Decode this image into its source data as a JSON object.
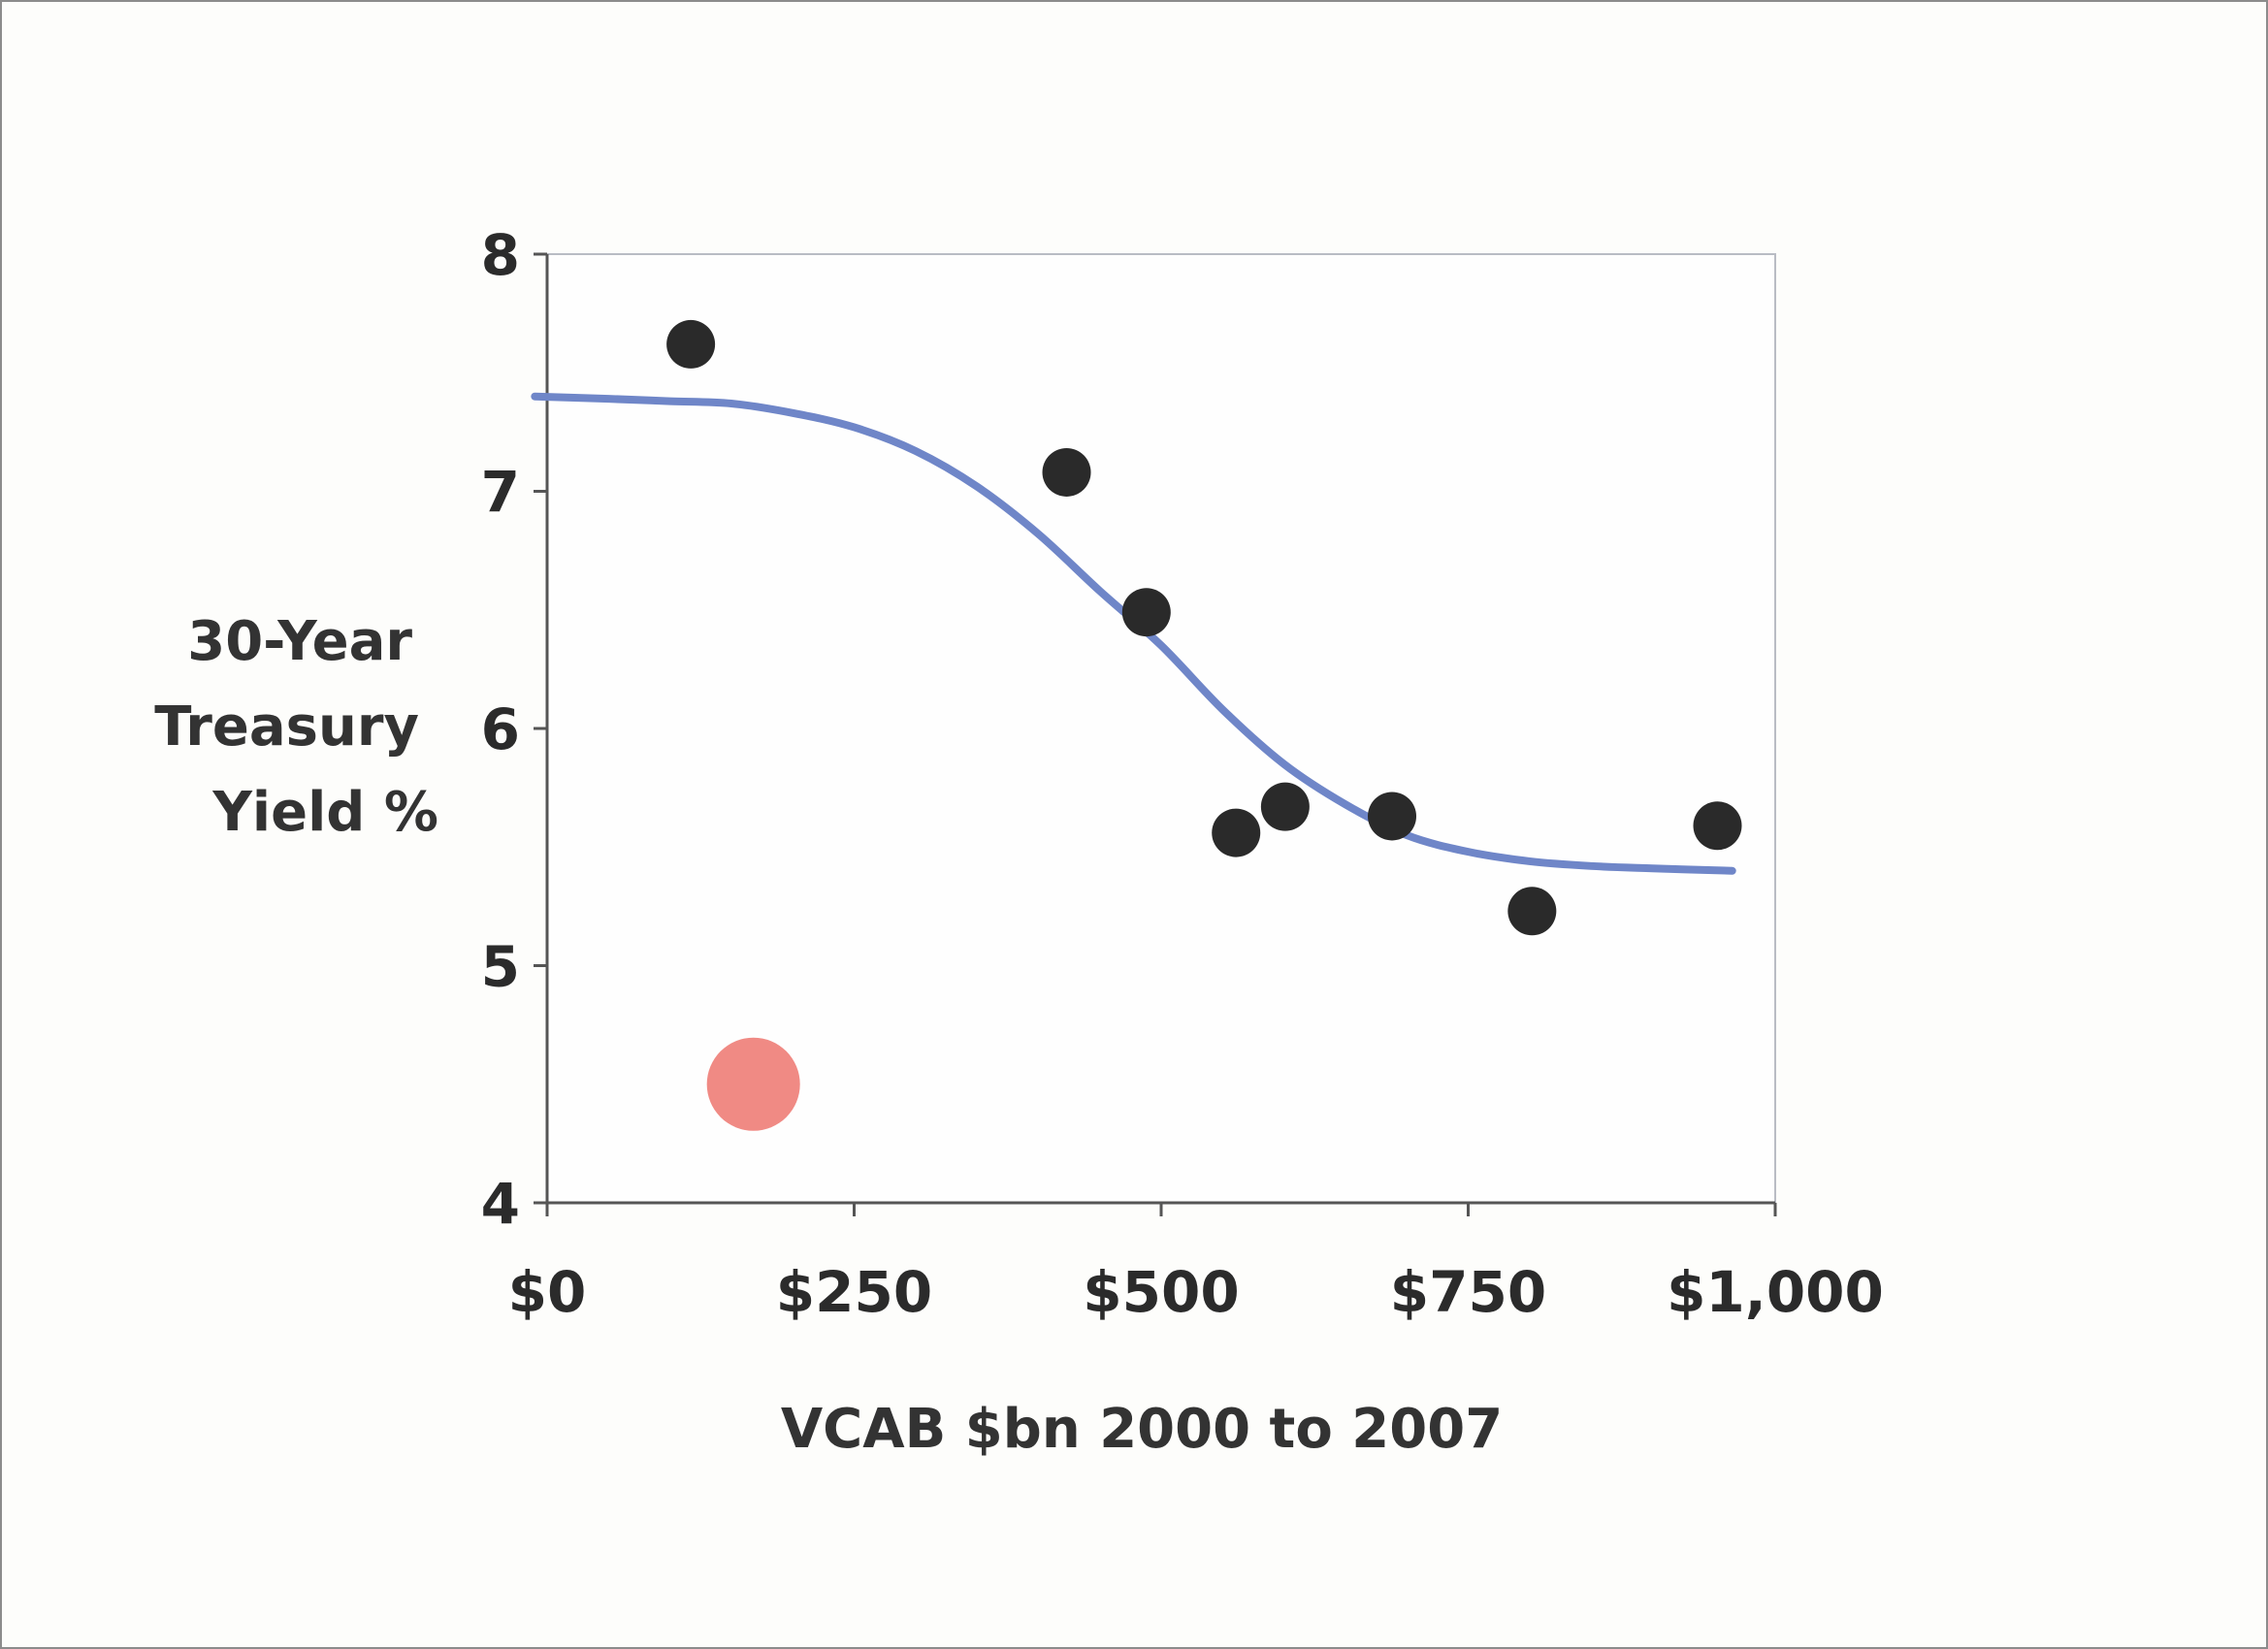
{
  "chart_data": {
    "type": "scatter",
    "xlabel": "VCAB $bn 2000 to 2007",
    "ylabel_lines": [
      "30-Year",
      "Treasury",
      "Yield %"
    ],
    "xlim": [
      0,
      1000
    ],
    "ylim": [
      4,
      8
    ],
    "x_ticks": [
      {
        "value": 0,
        "label": "$0"
      },
      {
        "value": 250,
        "label": "$250"
      },
      {
        "value": 500,
        "label": "$500"
      },
      {
        "value": 750,
        "label": "$750"
      },
      {
        "value": 1000,
        "label": "$1,000"
      }
    ],
    "y_ticks": [
      {
        "value": 4,
        "label": "4"
      },
      {
        "value": 5,
        "label": "5"
      },
      {
        "value": 6,
        "label": "6"
      },
      {
        "value": 7,
        "label": "7"
      },
      {
        "value": 8,
        "label": "8"
      }
    ],
    "grid": false,
    "series": [
      {
        "color": "#2a2a2a",
        "points": [
          {
            "x": 117,
            "y": 7.62
          },
          {
            "x": 423,
            "y": 7.08
          },
          {
            "x": 488,
            "y": 6.49
          },
          {
            "x": 561,
            "y": 5.56
          },
          {
            "x": 601,
            "y": 5.67
          },
          {
            "x": 688,
            "y": 5.63
          },
          {
            "x": 802,
            "y": 5.23
          },
          {
            "x": 953,
            "y": 5.59
          }
        ]
      },
      {
        "color": "#f08a84",
        "points": [
          {
            "x": 168,
            "y": 4.5
          }
        ]
      }
    ],
    "trend_line": {
      "color": "#6f86c8",
      "points": [
        {
          "x": -10,
          "y": 7.4
        },
        {
          "x": 50,
          "y": 7.39
        },
        {
          "x": 100,
          "y": 7.38
        },
        {
          "x": 150,
          "y": 7.37
        },
        {
          "x": 200,
          "y": 7.33
        },
        {
          "x": 250,
          "y": 7.27
        },
        {
          "x": 300,
          "y": 7.17
        },
        {
          "x": 350,
          "y": 7.02
        },
        {
          "x": 400,
          "y": 6.82
        },
        {
          "x": 450,
          "y": 6.58
        },
        {
          "x": 500,
          "y": 6.35
        },
        {
          "x": 550,
          "y": 6.08
        },
        {
          "x": 600,
          "y": 5.85
        },
        {
          "x": 650,
          "y": 5.68
        },
        {
          "x": 700,
          "y": 5.55
        },
        {
          "x": 750,
          "y": 5.48
        },
        {
          "x": 800,
          "y": 5.44
        },
        {
          "x": 850,
          "y": 5.42
        },
        {
          "x": 900,
          "y": 5.41
        },
        {
          "x": 965,
          "y": 5.4
        }
      ]
    }
  }
}
